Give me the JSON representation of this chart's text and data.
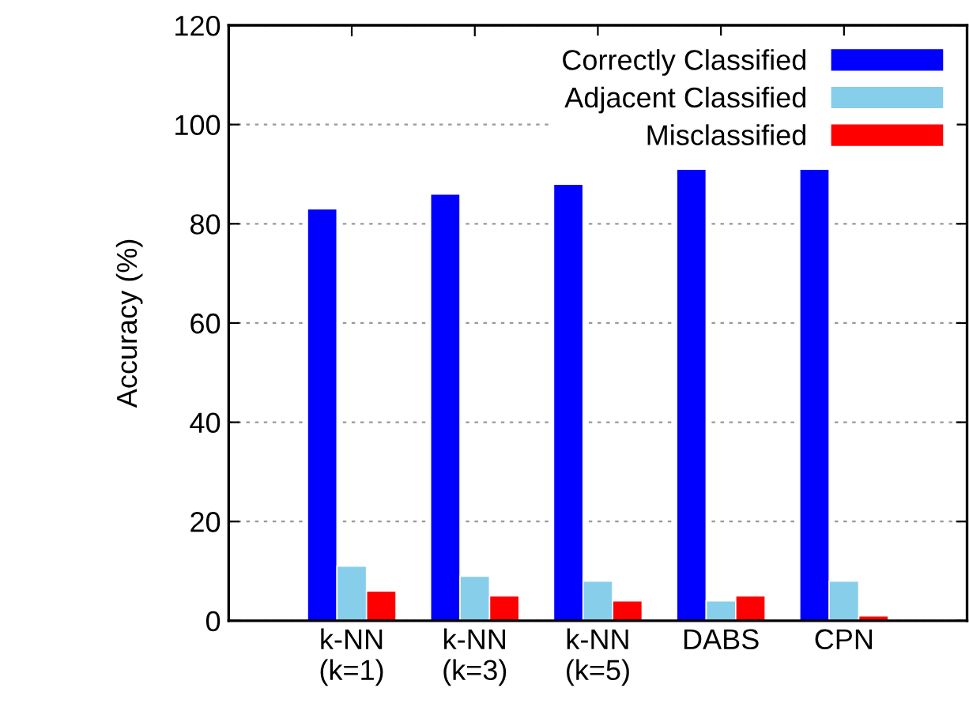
{
  "chart_data": {
    "type": "bar",
    "ylabel": "Accuracy (%)",
    "categories": [
      "k-NN\n(k=1)",
      "k-NN\n(k=3)",
      "k-NN\n(k=5)",
      "DABS",
      "CPN"
    ],
    "series": [
      {
        "name": "Correctly Classified",
        "color": "#0000ff",
        "values": [
          83,
          86,
          88,
          91,
          91
        ]
      },
      {
        "name": "Adjacent Classified",
        "color": "#87ceeb",
        "values": [
          11,
          9,
          8,
          4,
          8
        ]
      },
      {
        "name": "Misclassified",
        "color": "#ff0000",
        "values": [
          6,
          5,
          4,
          5,
          1
        ]
      }
    ],
    "ylim": [
      0,
      120
    ],
    "yticks": [
      0,
      20,
      40,
      60,
      80,
      100,
      120
    ],
    "grid": "y",
    "legend": "top right"
  }
}
